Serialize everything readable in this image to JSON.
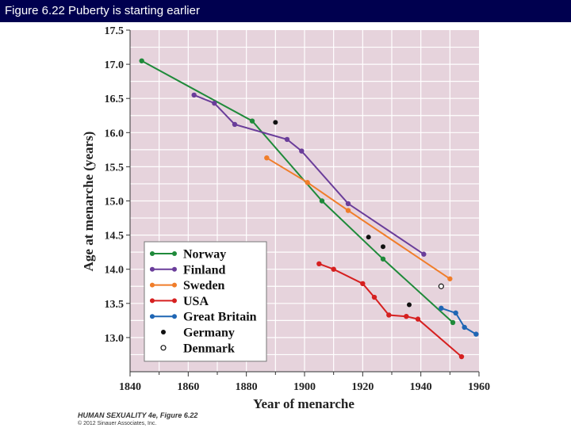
{
  "header": {
    "title": "Figure 6.22 Puberty is starting earlier"
  },
  "credits": {
    "line1": "HUMAN SEXUALITY 4e, Figure 6.22",
    "line2": "© 2012 Sinauer Associates, Inc."
  },
  "chart_data": {
    "type": "line",
    "xlabel": "Year of menarche",
    "ylabel": "Age at menarche (years)",
    "xlim": [
      1840,
      1960
    ],
    "ylim": [
      12.5,
      17.5
    ],
    "x_ticks": [
      1840,
      1860,
      1880,
      1900,
      1920,
      1940,
      1960
    ],
    "y_ticks": [
      13.0,
      13.5,
      14.0,
      14.5,
      15.0,
      15.5,
      16.0,
      16.5,
      17.0,
      17.5
    ],
    "y_tick_labels": [
      "13.0",
      "13.5",
      "14.0",
      "14.5",
      "15.0",
      "15.5",
      "16.0",
      "16.5",
      "17.0",
      "17.5"
    ],
    "grid": true,
    "background_color": "#e6d3dc",
    "grid_color": "#ffffff",
    "legend_position": "bottom-left",
    "series": [
      {
        "name": "Norway",
        "color": "#1f8a3a",
        "style": "line",
        "points": [
          [
            1844,
            17.05
          ],
          [
            1882,
            16.17
          ],
          [
            1906,
            15.0
          ],
          [
            1927,
            14.15
          ],
          [
            1951,
            13.22
          ]
        ]
      },
      {
        "name": "Finland",
        "color": "#6a3d9a",
        "style": "line",
        "points": [
          [
            1862,
            16.55
          ],
          [
            1869,
            16.43
          ],
          [
            1876,
            16.12
          ],
          [
            1894,
            15.9
          ],
          [
            1899,
            15.73
          ],
          [
            1915,
            14.96
          ],
          [
            1941,
            14.22
          ]
        ]
      },
      {
        "name": "Sweden",
        "color": "#f07d2a",
        "style": "line",
        "points": [
          [
            1887,
            15.63
          ],
          [
            1901,
            15.27
          ],
          [
            1915,
            14.86
          ],
          [
            1950,
            13.86
          ]
        ]
      },
      {
        "name": "USA",
        "color": "#d62020",
        "style": "line",
        "points": [
          [
            1905,
            14.08
          ],
          [
            1910,
            14.0
          ],
          [
            1920,
            13.79
          ],
          [
            1924,
            13.59
          ],
          [
            1929,
            13.33
          ],
          [
            1935,
            13.31
          ],
          [
            1939,
            13.27
          ],
          [
            1954,
            12.72
          ]
        ]
      },
      {
        "name": "Great Britain",
        "color": "#1f66b4",
        "style": "line",
        "points": [
          [
            1947,
            13.43
          ],
          [
            1952,
            13.36
          ],
          [
            1955,
            13.15
          ],
          [
            1959,
            13.05
          ]
        ]
      },
      {
        "name": "Germany",
        "color": "#111111",
        "style": "filled-points",
        "points": [
          [
            1890,
            16.15
          ],
          [
            1922,
            14.47
          ],
          [
            1927,
            14.33
          ],
          [
            1936,
            13.48
          ]
        ]
      },
      {
        "name": "Denmark",
        "color": "#111111",
        "style": "open-points",
        "points": [
          [
            1947,
            13.75
          ]
        ]
      }
    ]
  }
}
